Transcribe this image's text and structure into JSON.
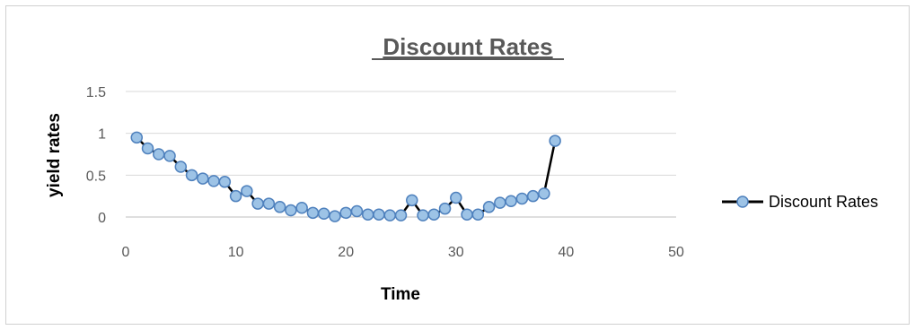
{
  "chart_data": {
    "type": "scatter",
    "title": "Discount Rates",
    "xlabel": "Time",
    "ylabel": "yield rates",
    "xlim": [
      0,
      50
    ],
    "ylim": [
      0,
      1.5
    ],
    "x_ticks": [
      "0",
      "10",
      "20",
      "30",
      "40",
      "50"
    ],
    "y_ticks": [
      "0",
      "0.5",
      "1",
      "1.5"
    ],
    "x_tick_values": [
      0,
      10,
      20,
      30,
      40,
      50
    ],
    "y_tick_values": [
      0,
      0.5,
      1,
      1.5
    ],
    "grid": true,
    "legend_position": "right",
    "series": [
      {
        "name": "Discount Rates",
        "line_color": "#000000",
        "marker_fill": "#9dc3e6",
        "marker_edge": "#4f81bd",
        "x": [
          1,
          2,
          3,
          4,
          5,
          6,
          7,
          8,
          9,
          10,
          11,
          12,
          13,
          14,
          15,
          16,
          17,
          18,
          19,
          20,
          21,
          22,
          23,
          24,
          25,
          26,
          27,
          28,
          29,
          30,
          31,
          32,
          33,
          34,
          35,
          36,
          37,
          38,
          39
        ],
        "y": [
          0.95,
          0.82,
          0.75,
          0.73,
          0.6,
          0.5,
          0.46,
          0.43,
          0.42,
          0.25,
          0.31,
          0.16,
          0.16,
          0.12,
          0.08,
          0.11,
          0.05,
          0.04,
          0.01,
          0.05,
          0.07,
          0.03,
          0.03,
          0.02,
          0.02,
          0.2,
          0.02,
          0.03,
          0.1,
          0.23,
          0.03,
          0.03,
          0.12,
          0.17,
          0.19,
          0.22,
          0.25,
          0.28,
          0.91
        ]
      }
    ]
  }
}
